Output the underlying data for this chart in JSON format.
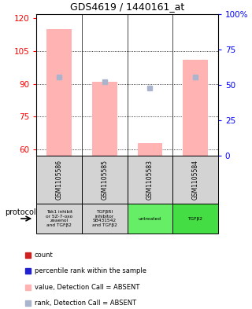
{
  "title": "GDS4619 / 1440161_at",
  "samples": [
    "GSM1105586",
    "GSM1105585",
    "GSM1105583",
    "GSM1105584"
  ],
  "protocols": [
    "Tak1 inhibit\nor 5Z-7-oxo\nzeaenol\nand TGFβ2",
    "TGFβRI\ninhibitor\nSB431542\nand TGFβ2",
    "untreated",
    "TGFβ2"
  ],
  "protocol_colors": [
    "#d3d3d3",
    "#d3d3d3",
    "#66ee66",
    "#44dd44"
  ],
  "ylim_left": [
    57,
    122
  ],
  "ylim_right": [
    0,
    100
  ],
  "yticks_left": [
    60,
    75,
    90,
    105,
    120
  ],
  "yticks_right": [
    0,
    25,
    50,
    75,
    100
  ],
  "yticklabels_right": [
    "0",
    "25",
    "50",
    "75",
    "100%"
  ],
  "bar_values": [
    115,
    91,
    63,
    101
  ],
  "bar_color": "#ffb3b3",
  "rank_values": [
    93,
    91,
    88,
    93
  ],
  "rank_color": "#aab4cc",
  "count_color": "#cc2222",
  "percentile_color": "#2222cc",
  "sample_bg_color": "#d3d3d3",
  "legend_items": [
    {
      "label": "count",
      "color": "#cc2222"
    },
    {
      "label": "percentile rank within the sample",
      "color": "#2222cc"
    },
    {
      "label": "value, Detection Call = ABSENT",
      "color": "#ffb3b3"
    },
    {
      "label": "rank, Detection Call = ABSENT",
      "color": "#aab4cc"
    }
  ]
}
